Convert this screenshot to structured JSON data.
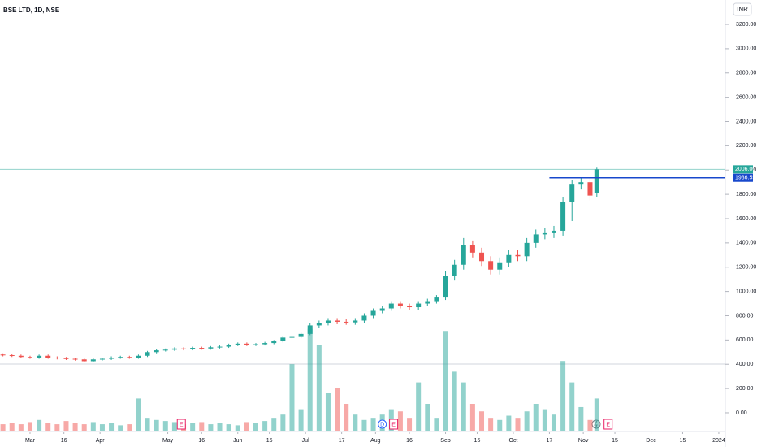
{
  "chart_data": {
    "type": "candlestick",
    "title": "BSE LTD, 1D, NSE",
    "currency": "INR",
    "x": [
      48,
      52,
      56,
      60,
      64,
      68,
      72,
      76,
      80,
      84,
      88,
      92,
      96,
      100,
      104,
      108,
      112,
      116,
      120,
      124,
      128,
      132,
      136,
      140,
      144,
      148,
      152,
      156,
      160,
      164,
      168,
      172,
      176,
      180,
      184,
      188,
      192,
      196,
      200,
      204,
      208,
      212,
      216,
      220,
      224,
      228,
      232,
      236,
      240,
      244,
      248,
      252,
      256,
      260,
      264,
      268,
      272,
      276,
      280,
      284,
      288,
      292,
      296,
      300,
      304,
      308,
      311
    ],
    "open": [
      480,
      475,
      470,
      460,
      455,
      470,
      455,
      450,
      445,
      440,
      425,
      440,
      445,
      455,
      460,
      455,
      470,
      500,
      515,
      520,
      530,
      525,
      535,
      530,
      540,
      545,
      560,
      570,
      560,
      565,
      575,
      590,
      620,
      625,
      650,
      720,
      740,
      760,
      750,
      745,
      760,
      800,
      840,
      860,
      900,
      880,
      870,
      900,
      920,
      950,
      1130,
      1220,
      1380,
      1320,
      1250,
      1180,
      1240,
      1300,
      1290,
      1400,
      1470,
      1480,
      1500,
      1740,
      1880,
      1900,
      1810
    ],
    "high": [
      490,
      485,
      480,
      470,
      480,
      480,
      465,
      460,
      455,
      450,
      450,
      455,
      465,
      470,
      470,
      480,
      510,
      525,
      530,
      540,
      540,
      545,
      545,
      550,
      555,
      570,
      580,
      580,
      575,
      585,
      600,
      630,
      635,
      660,
      740,
      760,
      780,
      780,
      770,
      780,
      820,
      860,
      880,
      920,
      920,
      900,
      920,
      940,
      970,
      1170,
      1260,
      1440,
      1420,
      1360,
      1290,
      1280,
      1340,
      1340,
      1440,
      1510,
      1520,
      1540,
      1780,
      1920,
      1940,
      1940,
      2020
    ],
    "low": [
      465,
      460,
      450,
      445,
      445,
      445,
      440,
      435,
      430,
      415,
      415,
      430,
      435,
      445,
      445,
      445,
      460,
      490,
      505,
      510,
      515,
      515,
      520,
      520,
      530,
      535,
      550,
      550,
      550,
      555,
      565,
      580,
      610,
      615,
      640,
      700,
      720,
      730,
      725,
      725,
      740,
      780,
      820,
      840,
      860,
      850,
      850,
      880,
      900,
      930,
      1090,
      1180,
      1280,
      1210,
      1140,
      1140,
      1200,
      1250,
      1250,
      1360,
      1430,
      1440,
      1460,
      1580,
      1840,
      1750,
      1780
    ],
    "close": [
      475,
      470,
      460,
      455,
      470,
      455,
      450,
      445,
      440,
      425,
      440,
      445,
      455,
      460,
      455,
      470,
      500,
      515,
      520,
      530,
      525,
      535,
      530,
      540,
      545,
      560,
      570,
      560,
      565,
      575,
      590,
      620,
      625,
      650,
      720,
      740,
      760,
      750,
      745,
      760,
      800,
      840,
      860,
      900,
      880,
      870,
      900,
      920,
      950,
      1130,
      1220,
      1380,
      1320,
      1250,
      1180,
      1240,
      1300,
      1290,
      1400,
      1470,
      1480,
      1500,
      1740,
      1880,
      1900,
      1790,
      2006
    ],
    "volume": [
      6,
      7,
      6,
      8,
      10,
      7,
      6,
      9,
      7,
      6,
      8,
      6,
      7,
      5,
      6,
      30,
      12,
      10,
      9,
      8,
      6,
      7,
      8,
      6,
      7,
      6,
      5,
      8,
      7,
      9,
      12,
      15,
      62,
      20,
      95,
      80,
      35,
      40,
      25,
      15,
      10,
      12,
      15,
      20,
      18,
      12,
      45,
      25,
      12,
      93,
      55,
      45,
      25,
      18,
      12,
      10,
      14,
      12,
      18,
      25,
      20,
      15,
      65,
      45,
      22,
      10,
      30
    ],
    "volume_ylim": [
      0,
      100
    ],
    "up_color": "#26a69a",
    "down_color": "#ef5350",
    "xlim": [
      46.7,
      367.9
    ],
    "xticks": [
      {
        "value": 60,
        "label": "Mar"
      },
      {
        "value": 75,
        "label": "16"
      },
      {
        "value": 91,
        "label": "Apr"
      },
      {
        "value": 121,
        "label": "May"
      },
      {
        "value": 136,
        "label": "16"
      },
      {
        "value": 152,
        "label": "Jun"
      },
      {
        "value": 166,
        "label": "15"
      },
      {
        "value": 182,
        "label": "Jul"
      },
      {
        "value": 198,
        "label": "17"
      },
      {
        "value": 213,
        "label": "Aug"
      },
      {
        "value": 228,
        "label": "16"
      },
      {
        "value": 244,
        "label": "Sep"
      },
      {
        "value": 258,
        "label": "15"
      },
      {
        "value": 274,
        "label": "Oct"
      },
      {
        "value": 290,
        "label": "17"
      },
      {
        "value": 305,
        "label": "Nov"
      },
      {
        "value": 319,
        "label": "15"
      },
      {
        "value": 335,
        "label": "Dec"
      },
      {
        "value": 349,
        "label": "15"
      },
      {
        "value": 365,
        "label": "2024"
      }
    ],
    "ylim": [
      -181,
      3401
    ],
    "yticks": [
      {
        "value": 0,
        "label": "0.00"
      },
      {
        "value": 200,
        "label": "200.00"
      },
      {
        "value": 400,
        "label": "400.00"
      },
      {
        "value": 600,
        "label": "600.00"
      },
      {
        "value": 800,
        "label": "800.00"
      },
      {
        "value": 1000,
        "label": "1000.00"
      },
      {
        "value": 1200,
        "label": "1200.00"
      },
      {
        "value": 1400,
        "label": "1400.00"
      },
      {
        "value": 1600,
        "label": "1600.00"
      },
      {
        "value": 1800,
        "label": "1800.00"
      },
      {
        "value": 2000,
        "label": "2000.00"
      },
      {
        "value": 2200,
        "label": "2200.00"
      },
      {
        "value": 2400,
        "label": "2400.00"
      },
      {
        "value": 2600,
        "label": "2600.00"
      },
      {
        "value": 2800,
        "label": "2800.00"
      },
      {
        "value": 3000,
        "label": "3000.00"
      },
      {
        "value": 3200,
        "label": "3200.00"
      }
    ],
    "last_price": {
      "value": 2006,
      "label": "2006.00",
      "color": "#26a69a"
    },
    "level": {
      "value": 1936.55,
      "label": "1936.55",
      "color": "#1848cc",
      "from": 290
    },
    "events": [
      {
        "x": 127,
        "label": "E"
      },
      {
        "x": 216,
        "label": "D"
      },
      {
        "x": 221,
        "label": "E"
      },
      {
        "x": 316,
        "label": "E"
      }
    ]
  }
}
